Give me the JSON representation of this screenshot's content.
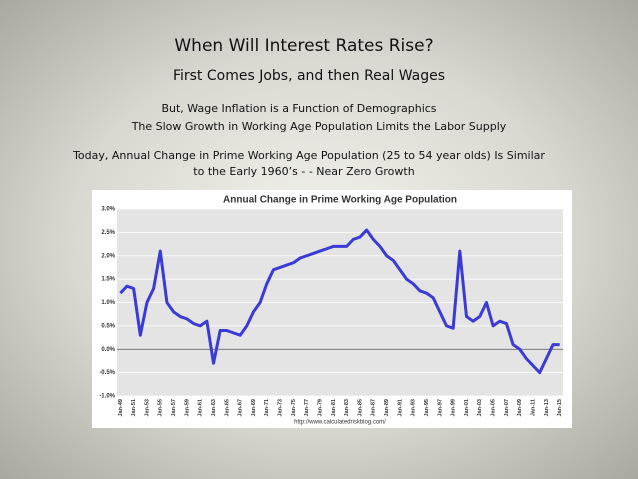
{
  "slide": {
    "title": "When Will Interest Rates Rise?",
    "subtitle": "First Comes Jobs, and then Real Wages",
    "line1": "But, Wage Inflation is a Function of Demographics",
    "line2": "The Slow Growth in Working Age Population Limits the Labor Supply",
    "line3": "Today, Annual Change in Prime Working Age Population (25 to 54 year olds) Is Similar",
    "line4": "to the Early 1960’s - - Near Zero Growth"
  },
  "chart_data": {
    "type": "line",
    "title": "Annual Change in Prime Working Age Population",
    "source": "http://www.calculatedriskblog.com/",
    "categories": [
      "Jan-49",
      null,
      "Jan-51",
      null,
      "Jan-53",
      null,
      "Jan-55",
      null,
      "Jan-57",
      null,
      "Jan-59",
      null,
      "Jan-61",
      null,
      "Jan-63",
      null,
      "Jan-65",
      null,
      "Jan-67",
      null,
      "Jan-69",
      null,
      "Jan-71",
      null,
      "Jan-73",
      null,
      "Jan-75",
      null,
      "Jan-77",
      null,
      "Jan-79",
      null,
      "Jan-81",
      null,
      "Jan-83",
      null,
      "Jan-85",
      null,
      "Jan-87",
      null,
      "Jan-89",
      null,
      "Jan-91",
      null,
      "Jan-93",
      null,
      "Jan-95",
      null,
      "Jan-97",
      null,
      "Jan-99",
      null,
      "Jan-01",
      null,
      "Jan-03",
      null,
      "Jan-05",
      null,
      "Jan-07",
      null,
      "Jan-09",
      null,
      "Jan-11",
      null,
      "Jan-13",
      null,
      "Jan-15"
    ],
    "series": [
      {
        "name": "Annual Change",
        "color": "#3a3ad8",
        "values": [
          1.2,
          1.35,
          1.3,
          0.3,
          1.0,
          1.3,
          2.1,
          1.0,
          0.8,
          0.7,
          0.65,
          0.55,
          0.5,
          0.6,
          -0.3,
          0.4,
          0.4,
          0.35,
          0.3,
          0.5,
          0.8,
          1.0,
          1.4,
          1.7,
          1.75,
          1.8,
          1.85,
          1.95,
          2.0,
          2.05,
          2.1,
          2.15,
          2.2,
          2.2,
          2.2,
          2.35,
          2.4,
          2.55,
          2.35,
          2.2,
          2.0,
          1.9,
          1.7,
          1.5,
          1.4,
          1.25,
          1.2,
          1.1,
          0.8,
          0.5,
          0.45,
          2.1,
          0.7,
          0.6,
          0.7,
          1.0,
          0.5,
          0.6,
          0.55,
          0.1,
          0.0,
          -0.2,
          -0.35,
          -0.5,
          -0.2,
          0.1,
          0.1
        ]
      }
    ],
    "ylim": [
      -1.0,
      3.0
    ],
    "yticks": [
      {
        "value": -1.0,
        "label": "-1.0%"
      },
      {
        "value": -0.5,
        "label": "-0.5%"
      },
      {
        "value": 0,
        "label": "0.0%"
      },
      {
        "value": 0.5,
        "label": "0.5%"
      },
      {
        "value": 1.0,
        "label": "1.0%"
      },
      {
        "value": 1.5,
        "label": "1.5%"
      },
      {
        "value": 2.0,
        "label": "2.0%"
      },
      {
        "value": 2.5,
        "label": "2.5%"
      },
      {
        "value": 3.0,
        "label": "3.0%"
      }
    ],
    "grid": true
  }
}
